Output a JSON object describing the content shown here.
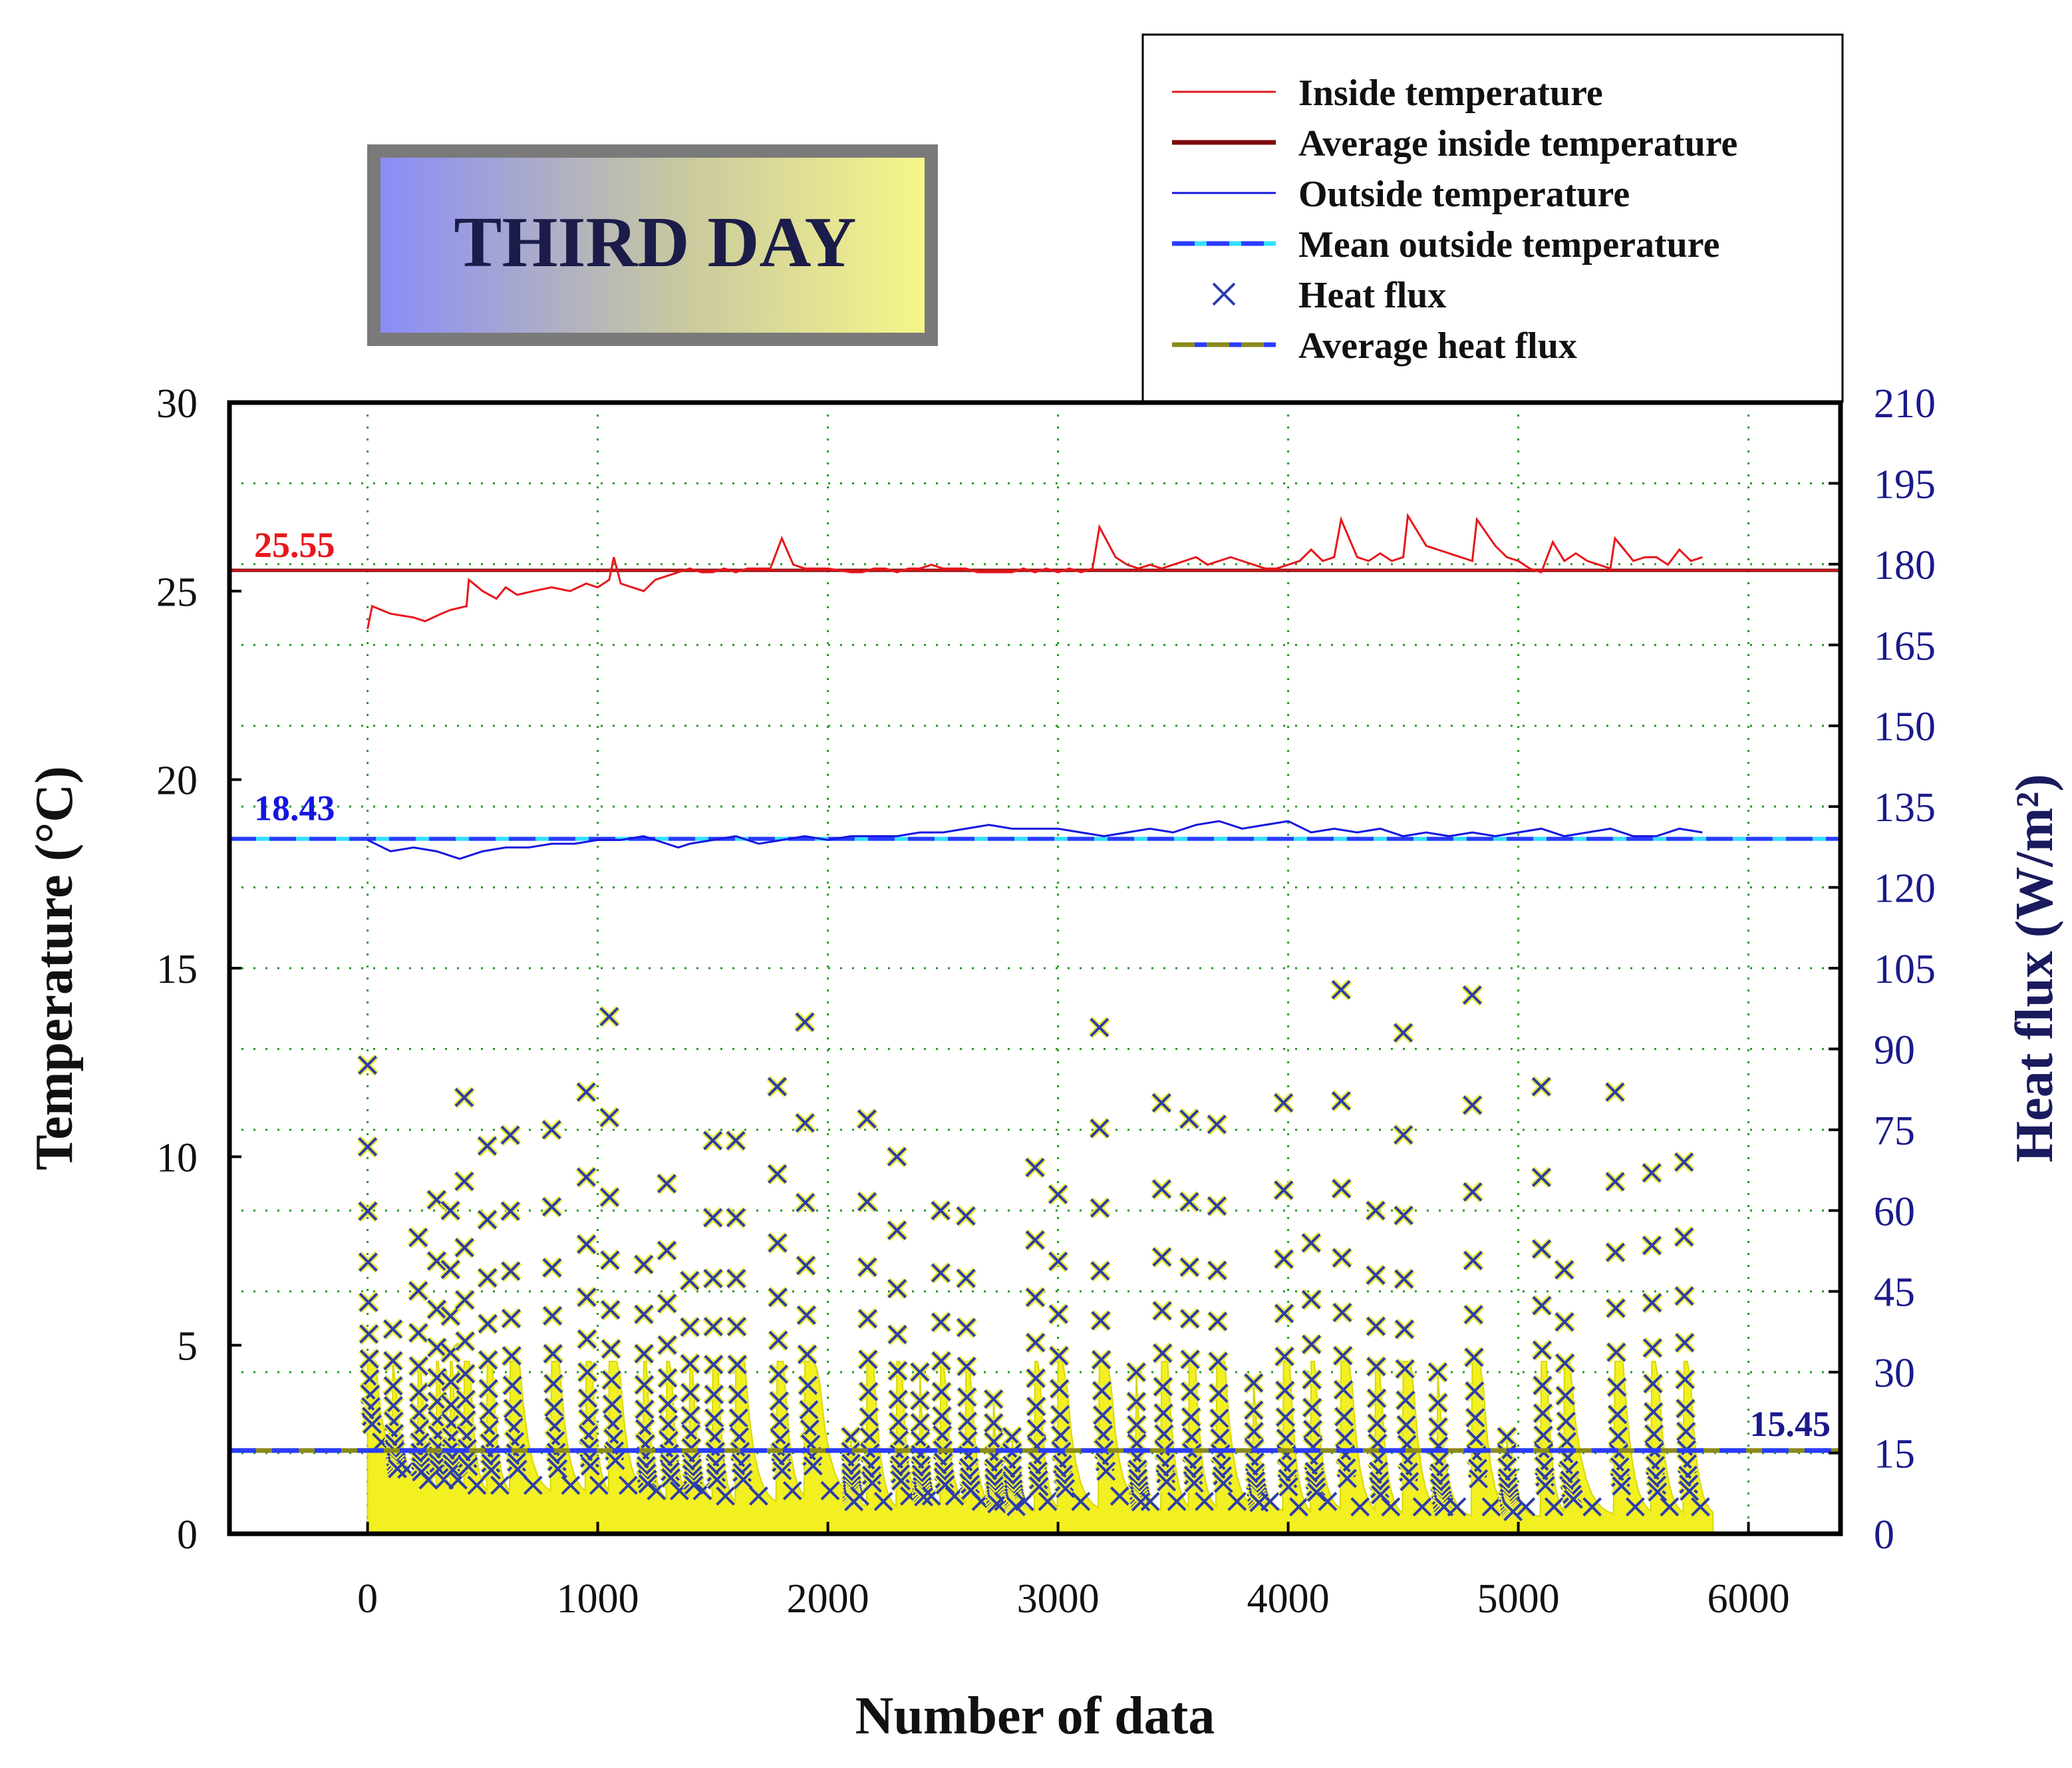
{
  "chart_data": {
    "type": "line",
    "title": "THIRD DAY",
    "xlabel": "Number of data",
    "ylabel_left": "Temperature (°C)",
    "ylabel_right": "Heat flux (W/m²)",
    "xlim": [
      -600,
      6400
    ],
    "ylim_left": [
      0,
      30
    ],
    "ylim_right": [
      0,
      210
    ],
    "x_ticks": [
      0,
      1000,
      2000,
      3000,
      4000,
      5000,
      6000
    ],
    "x_tick_labels": [
      "0",
      "1000",
      "2000",
      "3000",
      "4000",
      "5000",
      "6000"
    ],
    "y_left_ticks": [
      0,
      5,
      10,
      15,
      20,
      25,
      30
    ],
    "y_left_tick_labels": [
      "0",
      "5",
      "10",
      "15",
      "20",
      "25",
      "30"
    ],
    "y_right_ticks": [
      0,
      15,
      30,
      45,
      60,
      75,
      90,
      105,
      120,
      135,
      150,
      165,
      180,
      195,
      210
    ],
    "y_right_tick_labels": [
      "0",
      "15",
      "30",
      "45",
      "60",
      "75",
      "90",
      "105",
      "120",
      "135",
      "150",
      "165",
      "180",
      "195",
      "210"
    ],
    "grid": true,
    "legend_position": "top-right",
    "legend": [
      {
        "label": "Inside temperature",
        "style": "thin-line",
        "color": "#e8171c"
      },
      {
        "label": "Average inside temperature",
        "style": "thick-line",
        "color": "#7a0a0a"
      },
      {
        "label": "Outside temperature",
        "style": "thin-line",
        "color": "#1515e0"
      },
      {
        "label": "Mean outside temperature",
        "style": "dashed-line",
        "color": "#2a3cff",
        "color2": "#33e0ff"
      },
      {
        "label": "Heat flux",
        "style": "x-marker",
        "color": "#2d3da8"
      },
      {
        "label": "Average heat flux",
        "style": "dashed-line",
        "color": "#8a8a1c",
        "color2": "#2a3cff"
      }
    ],
    "annotations": [
      {
        "text": "25.55",
        "color": "#e8171c"
      },
      {
        "text": "18.43",
        "color": "#1515e0"
      },
      {
        "text": "15.45",
        "color": "#1a1a8c"
      }
    ],
    "series": [
      {
        "name": "Inside temperature",
        "axis": "left",
        "color": "#e8171c",
        "x": [
          0,
          20,
          100,
          200,
          250,
          320,
          360,
          430,
          440,
          500,
          560,
          600,
          650,
          720,
          800,
          880,
          950,
          1000,
          1050,
          1070,
          1100,
          1150,
          1200,
          1250,
          1300,
          1350,
          1400,
          1450,
          1500,
          1550,
          1600,
          1650,
          1700,
          1750,
          1800,
          1850,
          1900,
          1950,
          2000,
          2100,
          2150,
          2200,
          2250,
          2300,
          2350,
          2400,
          2450,
          2500,
          2550,
          2600,
          2650,
          2700,
          2750,
          2800,
          2850,
          2900,
          2950,
          3000,
          3050,
          3100,
          3150,
          3180,
          3250,
          3300,
          3350,
          3400,
          3450,
          3500,
          3550,
          3600,
          3650,
          3700,
          3750,
          3800,
          3850,
          3900,
          3950,
          4000,
          4050,
          4100,
          4150,
          4200,
          4230,
          4300,
          4350,
          4400,
          4450,
          4500,
          4520,
          4600,
          4650,
          4700,
          4750,
          4800,
          4820,
          4900,
          4950,
          5000,
          5050,
          5100,
          5150,
          5200,
          5250,
          5300,
          5350,
          5400,
          5420,
          5500,
          5550,
          5600,
          5650,
          5700,
          5750,
          5800
        ],
        "values": [
          24.0,
          24.6,
          24.4,
          24.3,
          24.2,
          24.4,
          24.5,
          24.6,
          25.3,
          25.0,
          24.8,
          25.1,
          24.9,
          25.0,
          25.1,
          25.0,
          25.2,
          25.1,
          25.3,
          25.9,
          25.2,
          25.1,
          25.0,
          25.3,
          25.4,
          25.5,
          25.6,
          25.5,
          25.5,
          25.6,
          25.5,
          25.6,
          25.6,
          25.6,
          26.4,
          25.7,
          25.6,
          25.6,
          25.6,
          25.5,
          25.5,
          25.6,
          25.6,
          25.5,
          25.6,
          25.6,
          25.7,
          25.6,
          25.6,
          25.6,
          25.5,
          25.5,
          25.5,
          25.5,
          25.6,
          25.5,
          25.6,
          25.5,
          25.6,
          25.5,
          25.6,
          26.7,
          25.9,
          25.7,
          25.6,
          25.7,
          25.6,
          25.7,
          25.8,
          25.9,
          25.7,
          25.8,
          25.9,
          25.8,
          25.7,
          25.6,
          25.6,
          25.7,
          25.8,
          26.1,
          25.8,
          25.9,
          26.9,
          25.9,
          25.8,
          26.0,
          25.8,
          25.9,
          27.0,
          26.2,
          26.1,
          26.0,
          25.9,
          25.8,
          26.9,
          26.2,
          25.9,
          25.8,
          25.6,
          25.5,
          26.3,
          25.8,
          26.0,
          25.8,
          25.7,
          25.6,
          26.4,
          25.8,
          25.9,
          25.9,
          25.7,
          26.1,
          25.8,
          25.9
        ]
      },
      {
        "name": "Average inside temperature",
        "axis": "left",
        "color": "#7a0a0a",
        "x": [
          -600,
          6400
        ],
        "values": [
          25.55,
          25.55
        ]
      },
      {
        "name": "Outside temperature",
        "axis": "left",
        "color": "#1515e0",
        "x": [
          0,
          100,
          200,
          300,
          400,
          500,
          600,
          700,
          800,
          900,
          1000,
          1100,
          1200,
          1300,
          1350,
          1400,
          1500,
          1600,
          1700,
          1800,
          1900,
          2000,
          2100,
          2200,
          2300,
          2400,
          2500,
          2600,
          2700,
          2800,
          2900,
          3000,
          3100,
          3200,
          3300,
          3400,
          3500,
          3600,
          3700,
          3800,
          3900,
          4000,
          4100,
          4200,
          4300,
          4400,
          4500,
          4600,
          4700,
          4800,
          4900,
          5000,
          5100,
          5200,
          5300,
          5400,
          5500,
          5600,
          5700,
          5800
        ],
        "values": [
          18.4,
          18.1,
          18.2,
          18.1,
          17.9,
          18.1,
          18.2,
          18.2,
          18.3,
          18.3,
          18.4,
          18.4,
          18.5,
          18.3,
          18.2,
          18.3,
          18.4,
          18.5,
          18.3,
          18.4,
          18.5,
          18.4,
          18.5,
          18.5,
          18.5,
          18.6,
          18.6,
          18.7,
          18.8,
          18.7,
          18.7,
          18.7,
          18.6,
          18.5,
          18.6,
          18.7,
          18.6,
          18.8,
          18.9,
          18.7,
          18.8,
          18.9,
          18.6,
          18.7,
          18.6,
          18.7,
          18.5,
          18.6,
          18.5,
          18.6,
          18.5,
          18.6,
          18.7,
          18.5,
          18.6,
          18.7,
          18.5,
          18.5,
          18.7,
          18.6
        ]
      },
      {
        "name": "Mean outside temperature",
        "axis": "left",
        "color": "#2a3cff",
        "x": [
          -600,
          6400
        ],
        "values": [
          18.43,
          18.43
        ]
      },
      {
        "name": "Heat flux",
        "axis": "right",
        "color": "#2d3da8",
        "peak_x": [
          0,
          110,
          220,
          300,
          360,
          420,
          520,
          620,
          800,
          950,
          1050,
          1200,
          1300,
          1400,
          1500,
          1600,
          1780,
          1900,
          2100,
          2170,
          2300,
          2400,
          2490,
          2600,
          2720,
          2800,
          2900,
          3000,
          3180,
          3340,
          3450,
          3570,
          3690,
          3850,
          3980,
          4100,
          4230,
          4380,
          4500,
          4650,
          4800,
          4950,
          5100,
          5200,
          5420,
          5580,
          5720
        ],
        "peak_values": [
          87,
          38,
          55,
          62,
          60,
          81,
          72,
          74,
          75,
          82,
          96,
          50,
          65,
          47,
          73,
          73,
          83,
          95,
          18,
          77,
          70,
          30,
          60,
          59,
          25,
          18,
          68,
          63,
          94,
          30,
          80,
          77,
          76,
          28,
          80,
          54,
          101,
          60,
          93,
          30,
          100,
          18,
          83,
          49,
          82,
          67,
          69
        ],
        "base_values": [
          15,
          10,
          8,
          8,
          8,
          7,
          7,
          7,
          7,
          7,
          7,
          6,
          6,
          6,
          5,
          5,
          6,
          6,
          5,
          4,
          5,
          5,
          5,
          4,
          4,
          4,
          4,
          4,
          5,
          4,
          4,
          4,
          4,
          4,
          3,
          4,
          3,
          3,
          3,
          3,
          3,
          3,
          3,
          3,
          3,
          3,
          3
        ]
      },
      {
        "name": "Average heat flux",
        "axis": "right",
        "color": "#8a8a1c",
        "x": [
          -600,
          6400
        ],
        "values": [
          15.45,
          15.45
        ]
      }
    ]
  }
}
